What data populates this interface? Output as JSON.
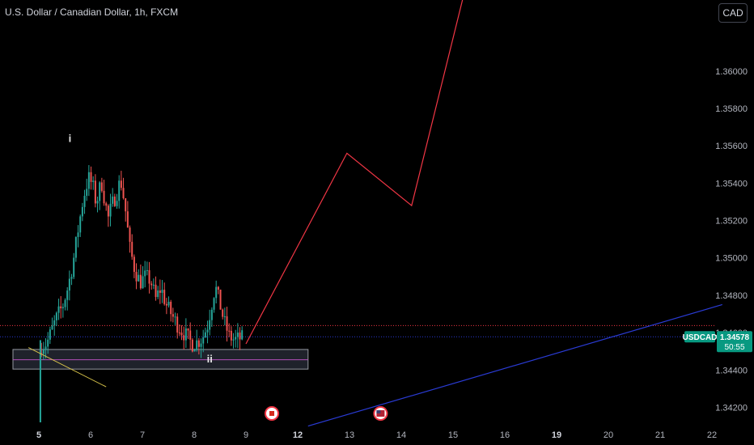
{
  "header": {
    "title": "U.S. Dollar / Canadian Dollar, 1h, FXCM",
    "currency_button": "CAD"
  },
  "colors": {
    "background": "#000000",
    "up_candle": "#26a69a",
    "down_candle": "#ef5350",
    "projection_line": "#f23645",
    "trend_line": "#2a3bd4",
    "price_badge": "#089981",
    "support_zone_fill": "#2a2e39",
    "yellow_line": "#d7c34a"
  },
  "chart_data": {
    "type": "candlestick",
    "symbol": "USDCAD",
    "title": "U.S. Dollar / Canadian Dollar, 1h, FXCM",
    "last_price": "1.34578",
    "countdown": "50:55",
    "y_ticks": [
      "1.36000",
      "1.35800",
      "1.35600",
      "1.35400",
      "1.35200",
      "1.35000",
      "1.34800",
      "1.34600",
      "1.34400",
      "1.34200"
    ],
    "x_ticks": [
      {
        "label": "5",
        "bold": true
      },
      {
        "label": "6",
        "bold": false
      },
      {
        "label": "7",
        "bold": false
      },
      {
        "label": "8",
        "bold": false
      },
      {
        "label": "9",
        "bold": false
      },
      {
        "label": "12",
        "bold": true
      },
      {
        "label": "13",
        "bold": false
      },
      {
        "label": "14",
        "bold": false
      },
      {
        "label": "15",
        "bold": false
      },
      {
        "label": "16",
        "bold": false
      },
      {
        "label": "19",
        "bold": true
      },
      {
        "label": "20",
        "bold": false
      },
      {
        "label": "21",
        "bold": false
      },
      {
        "label": "22",
        "bold": false
      }
    ],
    "ylim": [
      1.3412,
      1.3638
    ],
    "price_path": [
      [
        0.0,
        1.3412
      ],
      [
        0.05,
        1.3449
      ],
      [
        0.1,
        1.3454
      ],
      [
        0.15,
        1.3453
      ],
      [
        0.22,
        1.3456
      ],
      [
        0.3,
        1.3462
      ],
      [
        0.4,
        1.3469
      ],
      [
        0.5,
        1.3474
      ],
      [
        0.6,
        1.3484
      ],
      [
        0.7,
        1.3497
      ],
      [
        0.8,
        1.3515
      ],
      [
        0.9,
        1.3532
      ],
      [
        1.0,
        1.3543
      ],
      [
        1.08,
        1.3539
      ],
      [
        1.15,
        1.3529
      ],
      [
        1.25,
        1.3541
      ],
      [
        1.3,
        1.3533
      ],
      [
        1.38,
        1.3521
      ],
      [
        1.45,
        1.3528
      ],
      [
        1.55,
        1.3535
      ],
      [
        1.62,
        1.3542
      ],
      [
        1.7,
        1.3529
      ],
      [
        1.8,
        1.3505
      ],
      [
        1.9,
        1.3493
      ],
      [
        2.0,
        1.3487
      ],
      [
        2.1,
        1.349
      ],
      [
        2.2,
        1.3488
      ],
      [
        2.3,
        1.3478
      ],
      [
        2.4,
        1.3484
      ],
      [
        2.5,
        1.3475
      ],
      [
        2.6,
        1.347
      ],
      [
        2.7,
        1.3465
      ],
      [
        2.8,
        1.3461
      ],
      [
        2.9,
        1.3458
      ],
      [
        3.0,
        1.3454
      ],
      [
        3.1,
        1.3455
      ],
      [
        3.2,
        1.3457
      ],
      [
        3.3,
        1.3464
      ],
      [
        3.4,
        1.3478
      ],
      [
        3.45,
        1.3485
      ],
      [
        3.55,
        1.3474
      ],
      [
        3.62,
        1.3466
      ],
      [
        3.72,
        1.3458
      ],
      [
        3.82,
        1.3456
      ],
      [
        3.93,
        1.3457
      ]
    ],
    "projection": [
      {
        "x": 4.0,
        "y": 1.3454
      },
      {
        "x": 5.95,
        "y": 1.3556
      },
      {
        "x": 7.2,
        "y": 1.3528
      },
      {
        "x": 8.2,
        "y": 1.364
      }
    ],
    "trend_line": [
      {
        "x": 5.2,
        "y": 1.341
      },
      {
        "x": 13.2,
        "y": 1.3475
      }
    ],
    "yellow_line": [
      {
        "x": -0.2,
        "y": 1.3452
      },
      {
        "x": 1.3,
        "y": 1.3431
      }
    ],
    "support_zone": {
      "x_start": -0.5,
      "x_end": 5.2,
      "y_low": 1.34405,
      "y_high": 1.3451,
      "mid": 1.34455
    },
    "hlines": [
      {
        "y": 1.34638,
        "style": "dotted",
        "color": "#f23645"
      },
      {
        "y": 1.34578,
        "style": "dotted",
        "color": "#2a3bd4"
      }
    ],
    "wave_labels": [
      {
        "text": "i",
        "x": 0.6,
        "y": 1.3562
      },
      {
        "text": "ii",
        "x": 3.3,
        "y": 1.3444
      }
    ],
    "event_markers": [
      {
        "flag": "CA",
        "x": 4.5
      },
      {
        "flag": "US",
        "x": 6.6
      }
    ]
  }
}
